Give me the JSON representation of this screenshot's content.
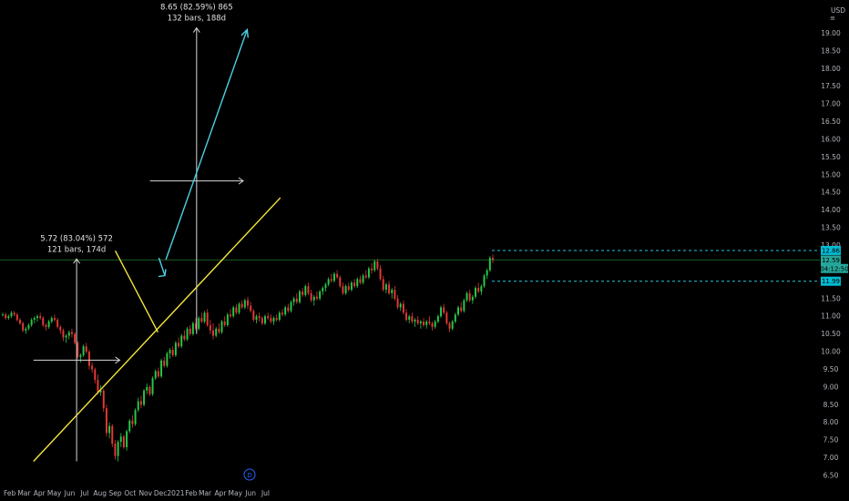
{
  "chart_data": {
    "type": "candlestick",
    "currency": "USD",
    "ylim": [
      6.5,
      19.5
    ],
    "y_ticks": [
      "6.50",
      "7.00",
      "7.50",
      "8.00",
      "8.50",
      "9.00",
      "9.50",
      "10.00",
      "10.50",
      "11.00",
      "11.50",
      "12.00",
      "12.50",
      "13.00",
      "13.50",
      "14.00",
      "14.50",
      "15.00",
      "15.50",
      "16.00",
      "16.50",
      "17.00",
      "17.50",
      "18.00",
      "18.50",
      "19.00"
    ],
    "x_ticks": [
      "Feb",
      "Mar",
      "Apr",
      "May",
      "Jun",
      "Jul",
      "Aug",
      "Sep",
      "Oct",
      "Nov",
      "Dec",
      "2021",
      "Feb",
      "Mar",
      "Apr",
      "May",
      "Jun",
      "Jul"
    ],
    "price_tags": [
      {
        "label": "12.86",
        "value": 12.86,
        "color": "#00bcd4"
      },
      {
        "label": "12.59",
        "value": 12.59,
        "color": "#26a69a"
      },
      {
        "label": "04:12:50",
        "value": 12.35,
        "color": "#26a69a"
      },
      {
        "label": "11.99",
        "value": 11.99,
        "color": "#00bcd4"
      }
    ],
    "horizontal_levels": [
      {
        "value": 12.59,
        "style": "solid",
        "color": "#1b5e20"
      },
      {
        "value": 12.86,
        "style": "dashed",
        "color": "#26c6da"
      },
      {
        "value": 11.99,
        "style": "dashed",
        "color": "#26c6da"
      }
    ],
    "measurements": [
      {
        "line1": "5.72 (83.04%) 572",
        "line2": "121 bars, 174d",
        "from": {
          "x": "Mar 20 2020",
          "y": 6.9
        },
        "to": {
          "x": "Sep 10 2020",
          "y": 12.62
        }
      },
      {
        "line1": "8.65 (82.59%) 865",
        "line2": "132 bars, 188d",
        "from": {
          "x": "Nov 10 2020",
          "y": 10.5
        },
        "to": {
          "x": "May 17 2021",
          "y": 19.15
        }
      }
    ],
    "trendlines": [
      {
        "color": "#f5e63c",
        "from": {
          "x": "Mar 20 2020",
          "y": 6.9
        },
        "to": {
          "x": "Jul 31 2021",
          "y": 14.35
        }
      },
      {
        "color": "#f5e63c",
        "from": {
          "x": "Sep 1 2020",
          "y": 12.85
        },
        "to": {
          "x": "Nov 26 2020",
          "y": 10.55
        }
      }
    ],
    "projection_arrow": {
      "color": "#4dd0e1",
      "from": {
        "x": "Dec 12 2020",
        "y": 12.6
      },
      "to": {
        "x": "May 25 2021",
        "y": 19.1
      }
    },
    "current_marker_label": "D",
    "candles": [
      [
        11.05,
        11.1,
        11.0,
        11.05
      ],
      [
        11.05,
        11.1,
        10.9,
        10.95
      ],
      [
        10.95,
        11.05,
        10.9,
        11.0
      ],
      [
        11.0,
        11.15,
        10.95,
        11.1
      ],
      [
        11.1,
        11.15,
        11.0,
        11.05
      ],
      [
        11.05,
        11.1,
        10.85,
        10.9
      ],
      [
        10.9,
        10.95,
        10.75,
        10.8
      ],
      [
        10.8,
        10.85,
        10.55,
        10.6
      ],
      [
        10.6,
        10.7,
        10.5,
        10.65
      ],
      [
        10.65,
        10.8,
        10.6,
        10.75
      ],
      [
        10.75,
        10.95,
        10.7,
        10.9
      ],
      [
        10.9,
        11.0,
        10.8,
        10.95
      ],
      [
        10.95,
        11.05,
        10.85,
        11.0
      ],
      [
        11.0,
        11.1,
        10.9,
        10.95
      ],
      [
        10.95,
        11.0,
        10.7,
        10.75
      ],
      [
        10.75,
        10.8,
        10.6,
        10.7
      ],
      [
        10.7,
        10.9,
        10.65,
        10.85
      ],
      [
        10.85,
        11.0,
        10.8,
        10.95
      ],
      [
        10.95,
        11.05,
        10.85,
        10.9
      ],
      [
        10.9,
        10.95,
        10.65,
        10.7
      ],
      [
        10.7,
        10.75,
        10.5,
        10.6
      ],
      [
        10.6,
        10.65,
        10.3,
        10.4
      ],
      [
        10.4,
        10.5,
        10.25,
        10.45
      ],
      [
        10.45,
        10.6,
        10.35,
        10.55
      ],
      [
        10.55,
        10.65,
        10.4,
        10.5
      ],
      [
        10.5,
        10.55,
        10.2,
        10.25
      ],
      [
        10.25,
        10.3,
        9.8,
        9.85
      ],
      [
        9.85,
        9.95,
        9.7,
        9.9
      ],
      [
        9.9,
        10.2,
        9.85,
        10.15
      ],
      [
        10.15,
        10.25,
        9.95,
        10.0
      ],
      [
        10.0,
        10.05,
        9.5,
        9.6
      ],
      [
        9.6,
        9.7,
        9.4,
        9.5
      ],
      [
        9.5,
        9.55,
        9.1,
        9.2
      ],
      [
        9.2,
        9.35,
        8.8,
        8.85
      ],
      [
        8.85,
        9.05,
        8.75,
        8.9
      ],
      [
        8.9,
        8.95,
        8.3,
        8.4
      ],
      [
        8.4,
        8.5,
        7.6,
        7.7
      ],
      [
        7.7,
        8.0,
        7.55,
        7.9
      ],
      [
        7.9,
        7.95,
        7.3,
        7.4
      ],
      [
        7.4,
        7.5,
        6.95,
        7.05
      ],
      [
        7.05,
        7.5,
        6.9,
        7.45
      ],
      [
        7.45,
        7.7,
        7.3,
        7.6
      ],
      [
        7.6,
        7.65,
        7.25,
        7.3
      ],
      [
        7.3,
        7.8,
        7.2,
        7.75
      ],
      [
        7.75,
        8.1,
        7.7,
        8.05
      ],
      [
        8.05,
        8.2,
        7.85,
        7.95
      ],
      [
        7.95,
        8.4,
        7.9,
        8.35
      ],
      [
        8.35,
        8.7,
        8.3,
        8.6
      ],
      [
        8.6,
        8.75,
        8.4,
        8.5
      ],
      [
        8.5,
        8.95,
        8.45,
        8.9
      ],
      [
        8.9,
        9.1,
        8.8,
        9.0
      ],
      [
        9.0,
        9.05,
        8.75,
        8.8
      ],
      [
        8.8,
        9.3,
        8.75,
        9.25
      ],
      [
        9.25,
        9.5,
        9.2,
        9.45
      ],
      [
        9.45,
        9.55,
        9.25,
        9.3
      ],
      [
        9.3,
        9.8,
        9.25,
        9.75
      ],
      [
        9.75,
        9.85,
        9.55,
        9.6
      ],
      [
        9.6,
        10.0,
        9.55,
        9.95
      ],
      [
        9.95,
        10.1,
        9.8,
        10.05
      ],
      [
        10.05,
        10.15,
        9.85,
        9.9
      ],
      [
        9.9,
        10.3,
        9.85,
        10.25
      ],
      [
        10.25,
        10.4,
        10.1,
        10.15
      ],
      [
        10.15,
        10.5,
        10.1,
        10.45
      ],
      [
        10.45,
        10.6,
        10.3,
        10.35
      ],
      [
        10.35,
        10.7,
        10.3,
        10.65
      ],
      [
        10.65,
        10.75,
        10.45,
        10.5
      ],
      [
        10.5,
        10.85,
        10.45,
        10.8
      ],
      [
        10.8,
        10.95,
        10.6,
        10.65
      ],
      [
        10.65,
        11.0,
        10.6,
        10.95
      ],
      [
        10.95,
        11.1,
        10.8,
        10.85
      ],
      [
        10.85,
        11.15,
        10.8,
        11.1
      ],
      [
        11.1,
        11.2,
        10.7,
        10.75
      ],
      [
        10.75,
        10.9,
        10.5,
        10.6
      ],
      [
        10.6,
        10.8,
        10.35,
        10.45
      ],
      [
        10.45,
        10.7,
        10.4,
        10.65
      ],
      [
        10.65,
        10.8,
        10.5,
        10.55
      ],
      [
        10.55,
        10.9,
        10.5,
        10.85
      ],
      [
        10.85,
        11.0,
        10.7,
        10.75
      ],
      [
        10.75,
        11.1,
        10.7,
        11.05
      ],
      [
        11.05,
        11.2,
        10.95,
        11.0
      ],
      [
        11.0,
        11.3,
        10.95,
        11.25
      ],
      [
        11.25,
        11.35,
        11.05,
        11.1
      ],
      [
        11.1,
        11.4,
        11.05,
        11.35
      ],
      [
        11.35,
        11.45,
        11.2,
        11.25
      ],
      [
        11.25,
        11.5,
        11.2,
        11.45
      ],
      [
        11.45,
        11.55,
        11.2,
        11.3
      ],
      [
        11.3,
        11.4,
        11.1,
        11.15
      ],
      [
        11.15,
        11.2,
        10.85,
        10.9
      ],
      [
        10.9,
        11.05,
        10.8,
        11.0
      ],
      [
        11.0,
        11.1,
        10.85,
        10.95
      ],
      [
        10.95,
        11.0,
        10.75,
        10.8
      ],
      [
        10.8,
        11.05,
        10.75,
        11.0
      ],
      [
        11.0,
        11.1,
        10.9,
        10.95
      ],
      [
        10.95,
        11.05,
        10.8,
        10.85
      ],
      [
        10.85,
        11.0,
        10.75,
        10.95
      ],
      [
        10.95,
        11.05,
        10.85,
        10.9
      ],
      [
        10.9,
        11.15,
        10.85,
        11.1
      ],
      [
        11.1,
        11.2,
        11.0,
        11.05
      ],
      [
        11.05,
        11.3,
        11.0,
        11.25
      ],
      [
        11.25,
        11.35,
        11.1,
        11.15
      ],
      [
        11.15,
        11.45,
        11.1,
        11.4
      ],
      [
        11.4,
        11.55,
        11.3,
        11.5
      ],
      [
        11.5,
        11.65,
        11.35,
        11.4
      ],
      [
        11.4,
        11.75,
        11.35,
        11.7
      ],
      [
        11.7,
        11.8,
        11.55,
        11.6
      ],
      [
        11.6,
        11.9,
        11.55,
        11.85
      ],
      [
        11.85,
        11.95,
        11.6,
        11.65
      ],
      [
        11.65,
        11.75,
        11.4,
        11.45
      ],
      [
        11.45,
        11.6,
        11.3,
        11.55
      ],
      [
        11.55,
        11.7,
        11.45,
        11.5
      ],
      [
        11.5,
        11.75,
        11.45,
        11.7
      ],
      [
        11.7,
        11.85,
        11.6,
        11.8
      ],
      [
        11.8,
        11.95,
        11.7,
        11.9
      ],
      [
        11.9,
        12.1,
        11.85,
        12.05
      ],
      [
        12.05,
        12.2,
        11.95,
        12.0
      ],
      [
        12.0,
        12.25,
        11.95,
        12.2
      ],
      [
        12.2,
        12.3,
        12.05,
        12.1
      ],
      [
        12.1,
        12.15,
        11.8,
        11.85
      ],
      [
        11.85,
        11.95,
        11.6,
        11.65
      ],
      [
        11.65,
        11.9,
        11.6,
        11.85
      ],
      [
        11.85,
        11.95,
        11.7,
        11.75
      ],
      [
        11.75,
        12.0,
        11.7,
        11.95
      ],
      [
        11.95,
        12.05,
        11.8,
        11.85
      ],
      [
        11.85,
        12.1,
        11.8,
        12.05
      ],
      [
        12.05,
        12.15,
        11.9,
        11.95
      ],
      [
        11.95,
        12.2,
        11.9,
        12.15
      ],
      [
        12.15,
        12.3,
        12.05,
        12.1
      ],
      [
        12.1,
        12.4,
        12.05,
        12.35
      ],
      [
        12.35,
        12.5,
        12.2,
        12.3
      ],
      [
        12.3,
        12.6,
        12.25,
        12.55
      ],
      [
        12.55,
        12.62,
        12.3,
        12.35
      ],
      [
        12.35,
        12.45,
        12.0,
        12.05
      ],
      [
        12.05,
        12.15,
        11.7,
        11.75
      ],
      [
        11.75,
        11.95,
        11.65,
        11.9
      ],
      [
        11.9,
        12.0,
        11.6,
        11.65
      ],
      [
        11.65,
        11.8,
        11.5,
        11.75
      ],
      [
        11.75,
        11.85,
        11.45,
        11.5
      ],
      [
        11.5,
        11.6,
        11.2,
        11.25
      ],
      [
        11.25,
        11.4,
        11.15,
        11.35
      ],
      [
        11.35,
        11.45,
        11.05,
        11.1
      ],
      [
        11.1,
        11.2,
        10.85,
        10.9
      ],
      [
        10.9,
        11.05,
        10.8,
        11.0
      ],
      [
        11.0,
        11.1,
        10.8,
        10.85
      ],
      [
        10.85,
        10.95,
        10.7,
        10.9
      ],
      [
        10.9,
        11.0,
        10.75,
        10.8
      ],
      [
        10.8,
        10.9,
        10.65,
        10.85
      ],
      [
        10.85,
        10.95,
        10.7,
        10.75
      ],
      [
        10.75,
        10.9,
        10.65,
        10.85
      ],
      [
        10.85,
        11.0,
        10.75,
        10.8
      ],
      [
        10.8,
        10.85,
        10.6,
        10.7
      ],
      [
        10.7,
        10.9,
        10.65,
        10.85
      ],
      [
        10.85,
        11.05,
        10.8,
        11.0
      ],
      [
        11.0,
        11.3,
        10.95,
        11.25
      ],
      [
        11.25,
        11.35,
        11.05,
        11.1
      ],
      [
        11.1,
        11.15,
        10.75,
        10.8
      ],
      [
        10.8,
        10.85,
        10.55,
        10.65
      ],
      [
        10.65,
        10.9,
        10.6,
        10.85
      ],
      [
        10.85,
        11.1,
        10.8,
        11.05
      ],
      [
        11.05,
        11.3,
        11.0,
        11.25
      ],
      [
        11.25,
        11.4,
        11.1,
        11.15
      ],
      [
        11.15,
        11.5,
        11.1,
        11.45
      ],
      [
        11.45,
        11.7,
        11.4,
        11.65
      ],
      [
        11.65,
        11.75,
        11.4,
        11.45
      ],
      [
        11.45,
        11.6,
        11.35,
        11.55
      ],
      [
        11.55,
        11.85,
        11.5,
        11.8
      ],
      [
        11.8,
        11.95,
        11.65,
        11.7
      ],
      [
        11.7,
        11.9,
        11.6,
        11.85
      ],
      [
        11.85,
        12.2,
        11.8,
        12.15
      ],
      [
        12.15,
        12.35,
        12.05,
        12.3
      ],
      [
        12.3,
        12.7,
        12.25,
        12.65
      ],
      [
        12.65,
        12.75,
        12.5,
        12.6
      ]
    ]
  }
}
